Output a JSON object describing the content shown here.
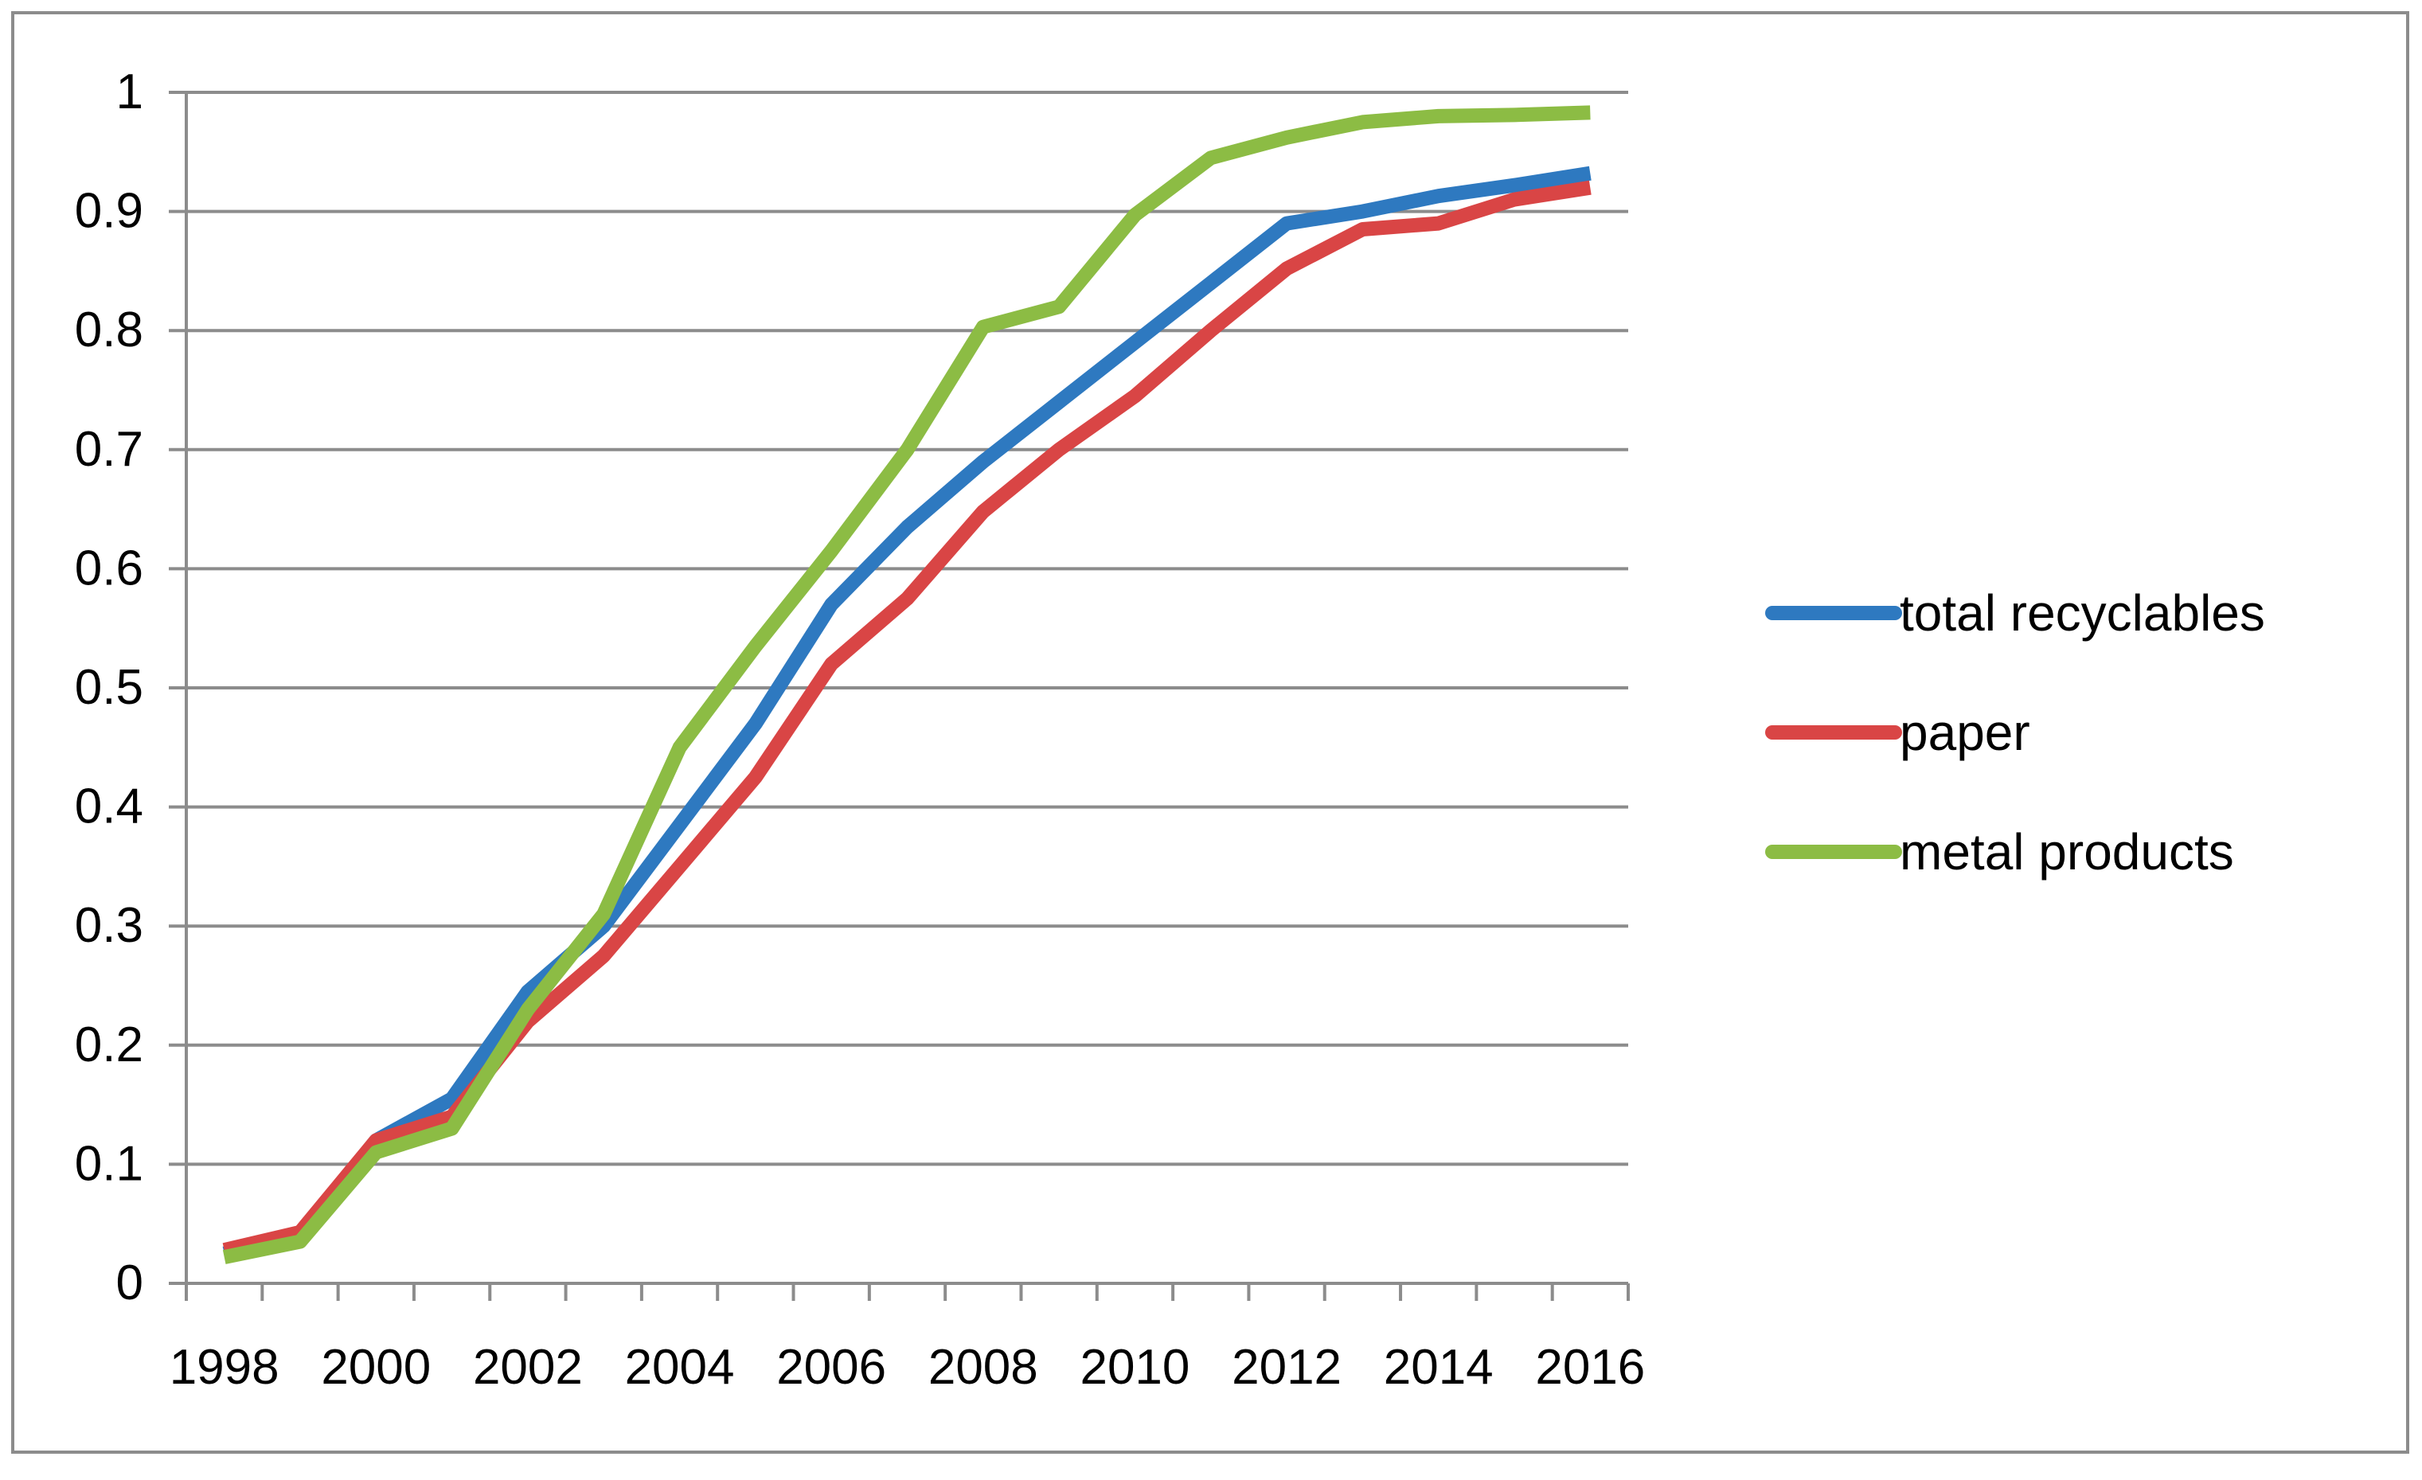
{
  "chart_data": {
    "type": "line",
    "title": "",
    "xlabel": "",
    "ylabel": "",
    "x": [
      1997.5,
      1998.5,
      1999.5,
      2000.5,
      2001.5,
      2002.5,
      2003.5,
      2004.5,
      2005.5,
      2006.5,
      2007.5,
      2008.5,
      2009.5,
      2010.5,
      2011.5,
      2012.5,
      2013.5,
      2014.5,
      2015.5
    ],
    "x_ticks": [
      "1998",
      "2000",
      "2002",
      "2004",
      "2006",
      "2008",
      "2010",
      "2012",
      "2014",
      "2016"
    ],
    "y_ticks": [
      "0",
      "0.1",
      "0.2",
      "0.3",
      "0.4",
      "0.5",
      "0.6",
      "0.7",
      "0.8",
      "0.9",
      "1"
    ],
    "xlim": [
      1997,
      2016
    ],
    "ylim": [
      0,
      1
    ],
    "grid": true,
    "legend_position": "right",
    "series": [
      {
        "name": "total recyclables",
        "color": "#2e79c0",
        "values": [
          0.025,
          0.04,
          0.12,
          0.155,
          0.245,
          0.3,
          0.385,
          0.47,
          0.57,
          0.635,
          0.69,
          0.74,
          0.79,
          0.84,
          0.89,
          0.9,
          0.913,
          0.922,
          0.932
        ]
      },
      {
        "name": "paper",
        "color": "#d94545",
        "values": [
          0.028,
          0.043,
          0.12,
          0.14,
          0.22,
          0.275,
          0.35,
          0.425,
          0.52,
          0.575,
          0.648,
          0.7,
          0.745,
          0.8,
          0.852,
          0.885,
          0.89,
          0.91,
          0.92
        ]
      },
      {
        "name": "metal products",
        "color": "#8cbc44",
        "values": [
          0.022,
          0.035,
          0.11,
          0.13,
          0.23,
          0.31,
          0.45,
          0.535,
          0.615,
          0.7,
          0.803,
          0.82,
          0.897,
          0.945,
          0.962,
          0.975,
          0.98,
          0.981,
          0.983
        ]
      }
    ]
  }
}
